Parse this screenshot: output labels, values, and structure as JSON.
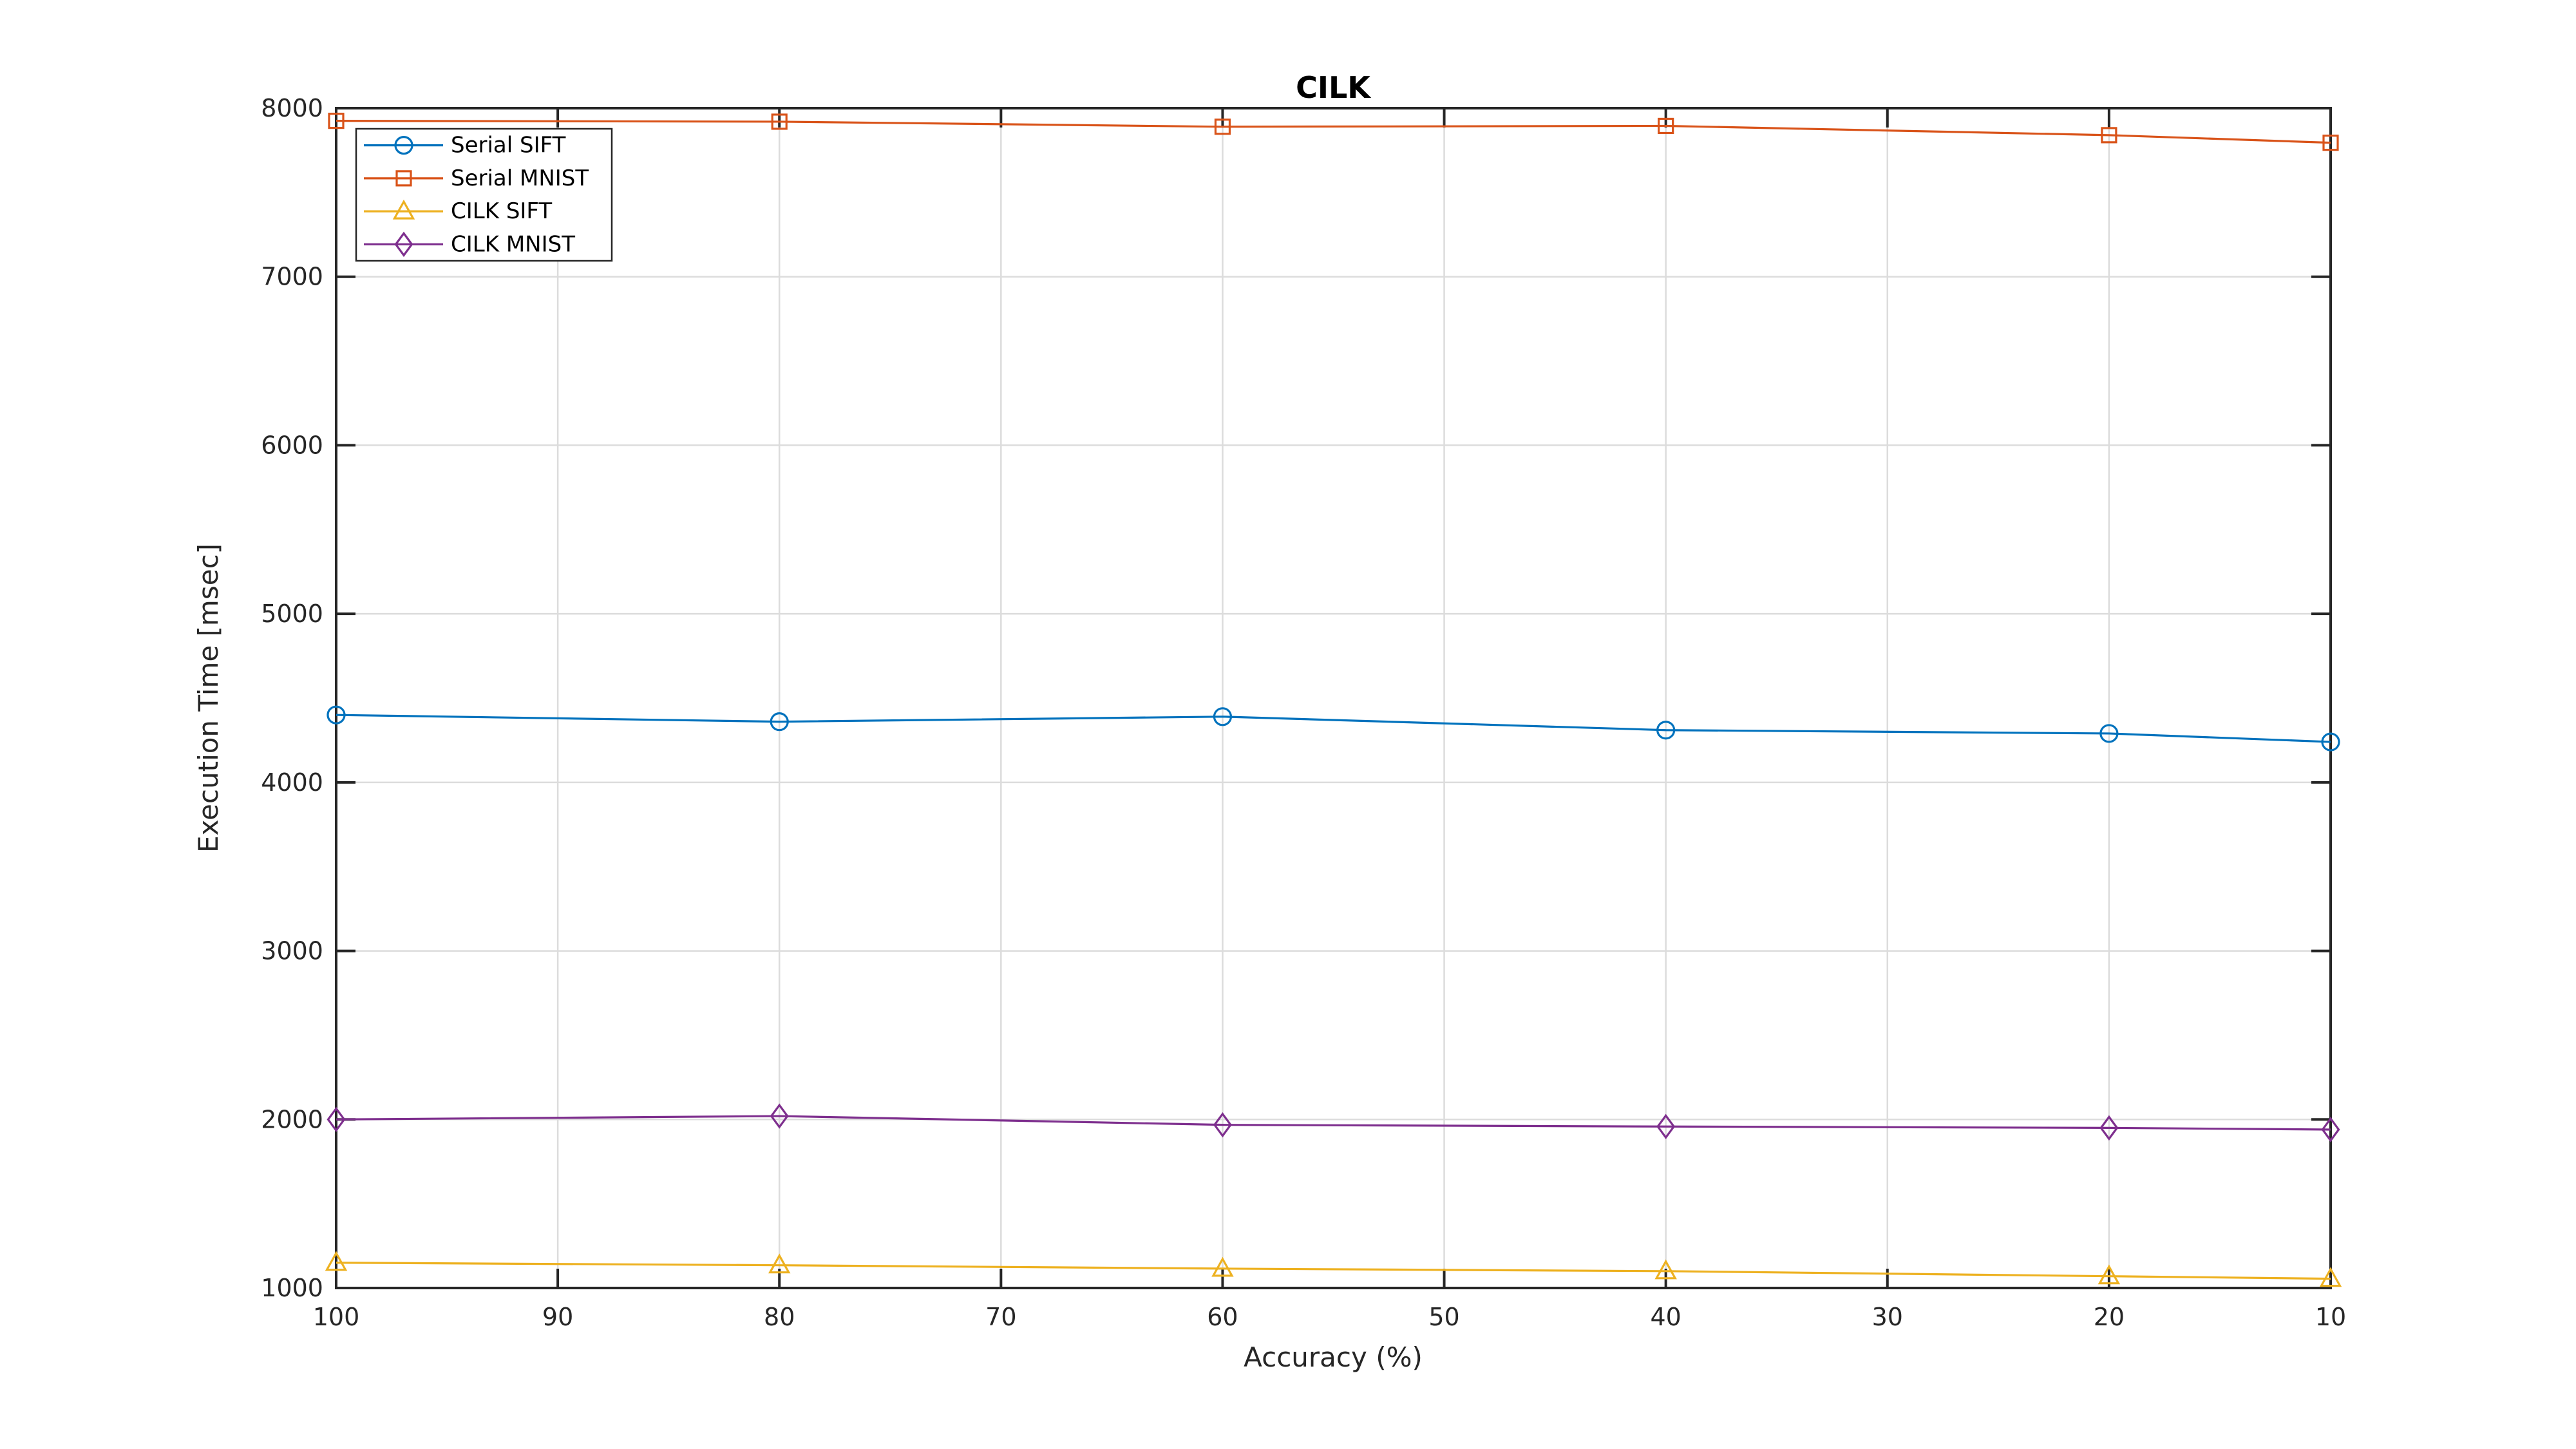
{
  "figure": {
    "background": "#ffffff",
    "axis_color": "#262626",
    "grid_color": "#dcdcdc",
    "tick_label_color": "#262626"
  },
  "chart_data": {
    "type": "line",
    "title": "CILK",
    "xlabel": "Accuracy (%)",
    "ylabel": "Execution Time [msec]",
    "x": [
      100,
      80,
      60,
      40,
      20,
      10
    ],
    "x_axis_reversed": true,
    "xlim": [
      100,
      10
    ],
    "ylim": [
      1000,
      8000
    ],
    "x_ticks": [
      100,
      90,
      80,
      70,
      60,
      50,
      40,
      30,
      20,
      10
    ],
    "x_tick_labels": [
      "100",
      "90",
      "80",
      "70",
      "60",
      "50",
      "40",
      "30",
      "20",
      "10"
    ],
    "y_ticks": [
      1000,
      2000,
      3000,
      4000,
      5000,
      6000,
      7000,
      8000
    ],
    "y_tick_labels": [
      "1000",
      "2000",
      "3000",
      "4000",
      "5000",
      "6000",
      "7000",
      "8000"
    ],
    "grid": true,
    "box": true,
    "tick_direction": "in",
    "legend_position": "top-left",
    "series": [
      {
        "name": "Serial SIFT",
        "color": "#0072BD",
        "marker": "circle",
        "values": [
          4400,
          4360,
          4390,
          4310,
          4290,
          4240
        ]
      },
      {
        "name": "Serial MNIST",
        "color": "#D95319",
        "marker": "square",
        "values": [
          7925,
          7920,
          7890,
          7895,
          7840,
          7795
        ]
      },
      {
        "name": "CILK SIFT",
        "color": "#EDB120",
        "marker": "triangle",
        "values": [
          1150,
          1135,
          1115,
          1100,
          1070,
          1055
        ]
      },
      {
        "name": "CILK MNIST",
        "color": "#7E2F8E",
        "marker": "diamond",
        "values": [
          2000,
          2020,
          1968,
          1958,
          1950,
          1940
        ]
      }
    ]
  }
}
